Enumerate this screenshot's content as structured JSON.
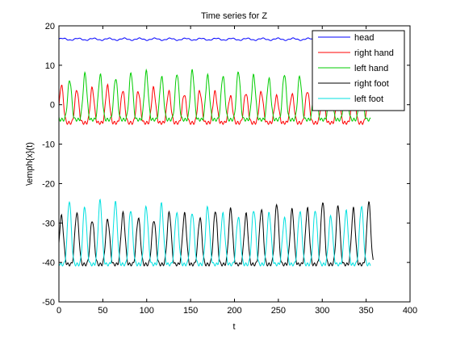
{
  "chart_data": {
    "type": "line",
    "title": "Time series for Z",
    "xlabel": "t",
    "ylabel": "\\emph{x}(t)",
    "xlim": [
      0,
      400
    ],
    "ylim": [
      -50,
      20
    ],
    "x_ticks": [
      "0",
      "50",
      "100",
      "150",
      "200",
      "250",
      "300",
      "350",
      "400"
    ],
    "y_ticks": [
      "20",
      "10",
      "0",
      "-10",
      "-20",
      "-30",
      "-40",
      "-50"
    ],
    "x_tick_values": [
      0,
      50,
      100,
      150,
      200,
      250,
      300,
      350,
      400
    ],
    "y_tick_values": [
      20,
      10,
      0,
      -10,
      -20,
      -30,
      -40,
      -50
    ],
    "grid": false,
    "legend_position": "top-right",
    "series": [
      {
        "name": "head",
        "color": "#0000ff",
        "t_range": [
          0,
          355
        ],
        "baseline": 16.6,
        "amplitude": 0.25,
        "period": 17.5,
        "phase": 0
      },
      {
        "name": "right hand",
        "color": "#ff0000",
        "t_range": [
          0,
          355
        ],
        "baseline": -4.6,
        "amplitude": 8.3,
        "period": 17.5,
        "phase": 3,
        "sharpness": 3
      },
      {
        "name": "left hand",
        "color": "#00cc00",
        "t_range": [
          0,
          355
        ],
        "baseline": -3.8,
        "amplitude": 10.5,
        "period": 17.5,
        "phase": 12,
        "sharpness": 3
      },
      {
        "name": "right foot",
        "color": "#000000",
        "t_range": [
          0,
          358
        ],
        "baseline": -40.5,
        "amplitude": 13.5,
        "period": 17.5,
        "phase": 3,
        "sharpness": 3
      },
      {
        "name": "left foot",
        "color": "#00e0e0",
        "t_range": [
          0,
          355
        ],
        "baseline": -40.5,
        "amplitude": 14.5,
        "period": 17.5,
        "phase": 12,
        "sharpness": 3
      }
    ]
  }
}
